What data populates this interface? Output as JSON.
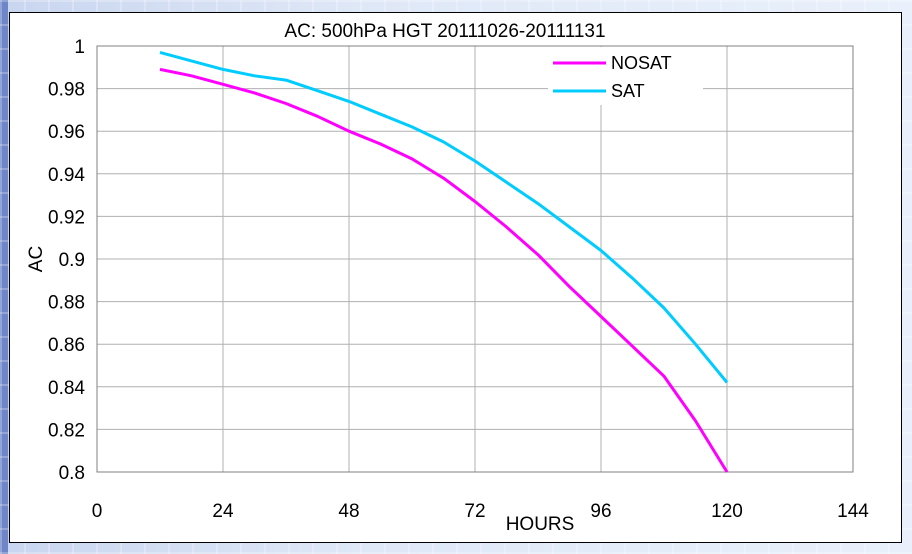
{
  "chart_data": {
    "type": "line",
    "title": "AC: 500hPa HGT 20111026-20111131",
    "xlabel": "HOURS",
    "ylabel": "AC",
    "xlim": [
      0,
      144
    ],
    "ylim": [
      0.8,
      1.0
    ],
    "xticks": [
      0,
      24,
      48,
      72,
      96,
      120,
      144
    ],
    "yticks": [
      0.8,
      0.82,
      0.84,
      0.86,
      0.88,
      0.9,
      0.92,
      0.94,
      0.96,
      0.98,
      1
    ],
    "grid": true,
    "legend_position": "top-right",
    "series": [
      {
        "name": "NOSAT",
        "color": "#ff00ff",
        "x": [
          12,
          18,
          24,
          30,
          36,
          42,
          48,
          54,
          60,
          66,
          72,
          78,
          84,
          90,
          96,
          102,
          108,
          114,
          120
        ],
        "y": [
          0.989,
          0.986,
          0.982,
          0.978,
          0.973,
          0.967,
          0.96,
          0.954,
          0.947,
          0.938,
          0.927,
          0.915,
          0.902,
          0.887,
          0.873,
          0.859,
          0.845,
          0.824,
          0.8
        ]
      },
      {
        "name": "SAT",
        "color": "#00ccff",
        "x": [
          12,
          18,
          24,
          30,
          36,
          42,
          48,
          54,
          60,
          66,
          72,
          78,
          84,
          90,
          96,
          102,
          108,
          114,
          120
        ],
        "y": [
          0.997,
          0.993,
          0.989,
          0.986,
          0.984,
          0.979,
          0.974,
          0.968,
          0.962,
          0.955,
          0.946,
          0.936,
          0.926,
          0.915,
          0.904,
          0.891,
          0.877,
          0.86,
          0.842
        ]
      }
    ]
  }
}
